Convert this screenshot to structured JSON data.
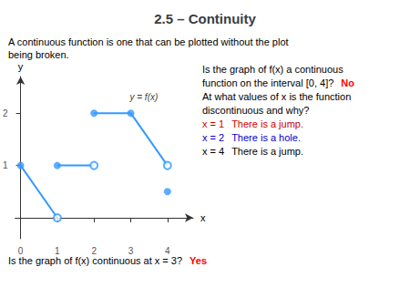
{
  "chart_data": {
    "type": "line",
    "title": "2.5 – Continuity",
    "subtitle": [
      "A continuous function is one that can be plotted without the plot",
      "being broken."
    ],
    "xlabel": "x",
    "ylabel": "y",
    "xlim": [
      -0.15,
      4.7
    ],
    "ylim": [
      -0.4,
      2.7
    ],
    "xticks": [
      0,
      1,
      2,
      3,
      4
    ],
    "yticks": [
      1,
      2
    ],
    "grid": false,
    "series": [
      {
        "type": "line",
        "color": "#3399FF",
        "x": [
          0,
          1
        ],
        "values": [
          1,
          0
        ]
      },
      {
        "type": "line",
        "color": "#3399FF",
        "x": [
          1,
          2
        ],
        "values": [
          1,
          1
        ]
      },
      {
        "type": "line",
        "color": "#3399FF",
        "x": [
          2,
          3
        ],
        "values": [
          2,
          2
        ]
      },
      {
        "type": "line",
        "color": "#3399FF",
        "x": [
          3,
          4
        ],
        "values": [
          2,
          1
        ]
      },
      {
        "type": "scatter",
        "color": "#3399FF",
        "marker": "circle",
        "x": [
          0,
          1,
          2,
          3
        ],
        "values": [
          1,
          1,
          2,
          2
        ]
      },
      {
        "type": "scatter",
        "color": "#3399FF",
        "marker": "open_circle",
        "x": [
          1,
          2,
          4
        ],
        "values": [
          0,
          1,
          1
        ]
      },
      {
        "type": "scatter",
        "color": "#3399FF",
        "marker": "circle",
        "x": [
          4
        ],
        "values": [
          0.5
        ]
      }
    ],
    "annotations": [
      {
        "text": "y = f(x)",
        "x": 2.85,
        "y": 2.3
      },
      {
        "text": [
          [
            {
              "text": "Is the graph of f(x) a continuous"
            }
          ],
          [
            {
              "text": "function on the interval [0, 4]?"
            },
            {
              "text": "No",
              "color": "#FF0000"
            }
          ],
          [
            {
              "text": "At what values of x is the function"
            }
          ],
          [
            {
              "text": "discontinuous and why?"
            }
          ],
          [
            {
              "text": "x = 1",
              "color": "#CC0000"
            },
            {
              "text": "There is a jump.",
              "color": "#CC0000"
            }
          ],
          [
            {
              "text": "x = 2",
              "color": "#0000CC"
            },
            {
              "text": "There is a hole.",
              "color": "#0000CC"
            }
          ],
          [
            {
              "text": "x = 4",
              "color": "#000000"
            },
            {
              "text": "There is a jump.",
              "color": "#000000"
            }
          ]
        ]
      },
      {
        "text": [
          [
            {
              "text": "Is the graph of f(x) continuous at "
            },
            {
              "text": "x = 3"
            },
            {
              "text": "?"
            },
            {
              "text": "Yes",
              "color": "#FF0000"
            }
          ]
        ]
      }
    ]
  }
}
